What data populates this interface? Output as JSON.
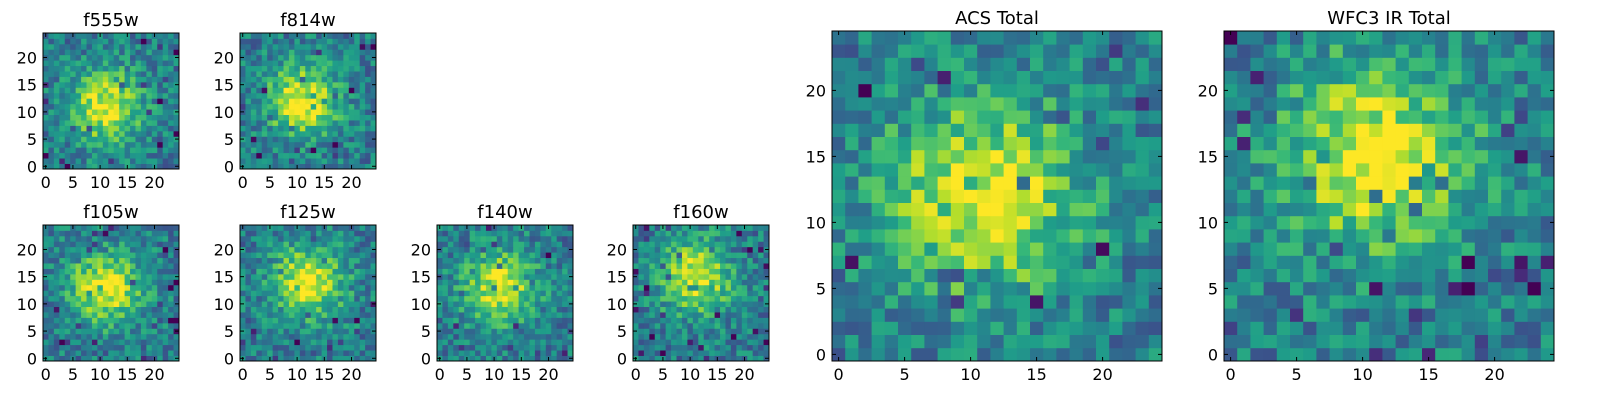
{
  "figure": {
    "background_color": "#ffffff",
    "colormap": "viridis"
  },
  "chart_data": [
    {
      "type": "heatmap",
      "title": "f555w",
      "xlabel": "",
      "ylabel": "",
      "xlim": [
        0,
        24
      ],
      "ylim": [
        0,
        24
      ],
      "xticks": [
        0,
        5,
        10,
        15,
        20
      ],
      "yticks": [
        0,
        5,
        10,
        15,
        20
      ],
      "grid": false,
      "legend": "none",
      "colormap": "viridis",
      "resolution": 25,
      "peak": {
        "x": 11,
        "y": 11
      },
      "value_scale": [
        0,
        1
      ]
    },
    {
      "type": "heatmap",
      "title": "f814w",
      "xlabel": "",
      "ylabel": "",
      "xlim": [
        0,
        24
      ],
      "ylim": [
        0,
        24
      ],
      "xticks": [
        0,
        5,
        10,
        15,
        20
      ],
      "yticks": [
        0,
        5,
        10,
        15,
        20
      ],
      "grid": false,
      "legend": "none",
      "colormap": "viridis",
      "resolution": 25,
      "peak": {
        "x": 11,
        "y": 12
      },
      "value_scale": [
        0,
        1
      ]
    },
    {
      "type": "heatmap",
      "title": "f105w",
      "xlabel": "",
      "ylabel": "",
      "xlim": [
        0,
        24
      ],
      "ylim": [
        0,
        24
      ],
      "xticks": [
        0,
        5,
        10,
        15,
        20
      ],
      "yticks": [
        0,
        5,
        10,
        15,
        20
      ],
      "grid": false,
      "legend": "none",
      "colormap": "viridis",
      "resolution": 25,
      "peak": {
        "x": 11,
        "y": 13
      },
      "value_scale": [
        0,
        1
      ]
    },
    {
      "type": "heatmap",
      "title": "f125w",
      "xlabel": "",
      "ylabel": "",
      "xlim": [
        0,
        24
      ],
      "ylim": [
        0,
        24
      ],
      "xticks": [
        0,
        5,
        10,
        15,
        20
      ],
      "yticks": [
        0,
        5,
        10,
        15,
        20
      ],
      "grid": false,
      "legend": "none",
      "colormap": "viridis",
      "resolution": 25,
      "peak": {
        "x": 12,
        "y": 14
      },
      "value_scale": [
        0,
        1
      ]
    },
    {
      "type": "heatmap",
      "title": "f140w",
      "xlabel": "",
      "ylabel": "",
      "xlim": [
        0,
        24
      ],
      "ylim": [
        0,
        24
      ],
      "xticks": [
        0,
        5,
        10,
        15,
        20
      ],
      "yticks": [
        0,
        5,
        10,
        15,
        20
      ],
      "grid": false,
      "legend": "none",
      "colormap": "viridis",
      "resolution": 25,
      "peak": {
        "x": 11,
        "y": 13
      },
      "value_scale": [
        0,
        1
      ]
    },
    {
      "type": "heatmap",
      "title": "f160w",
      "xlabel": "",
      "ylabel": "",
      "xlim": [
        0,
        24
      ],
      "ylim": [
        0,
        24
      ],
      "xticks": [
        0,
        5,
        10,
        15,
        20
      ],
      "yticks": [
        0,
        5,
        10,
        15,
        20
      ],
      "grid": false,
      "legend": "none",
      "colormap": "viridis",
      "resolution": 25,
      "peak": {
        "x": 11,
        "y": 15
      },
      "value_scale": [
        0,
        1
      ]
    },
    {
      "type": "heatmap",
      "title": "ACS Total",
      "xlabel": "",
      "ylabel": "",
      "xlim": [
        0,
        24
      ],
      "ylim": [
        0,
        24
      ],
      "xticks": [
        0,
        5,
        10,
        15,
        20
      ],
      "yticks": [
        0,
        5,
        10,
        15,
        20
      ],
      "grid": false,
      "legend": "none",
      "colormap": "viridis",
      "resolution": 25,
      "peak": {
        "x": 11,
        "y": 12
      },
      "value_scale": [
        0,
        1
      ]
    },
    {
      "type": "heatmap",
      "title": "WFC3 IR Total",
      "xlabel": "",
      "ylabel": "",
      "xlim": [
        0,
        24
      ],
      "ylim": [
        0,
        24
      ],
      "xticks": [
        0,
        5,
        10,
        15,
        20
      ],
      "yticks": [
        0,
        5,
        10,
        15,
        20
      ],
      "grid": false,
      "legend": "none",
      "colormap": "viridis",
      "resolution": 25,
      "peak": {
        "x": 11,
        "y": 15
      },
      "value_scale": [
        0,
        1
      ]
    }
  ]
}
